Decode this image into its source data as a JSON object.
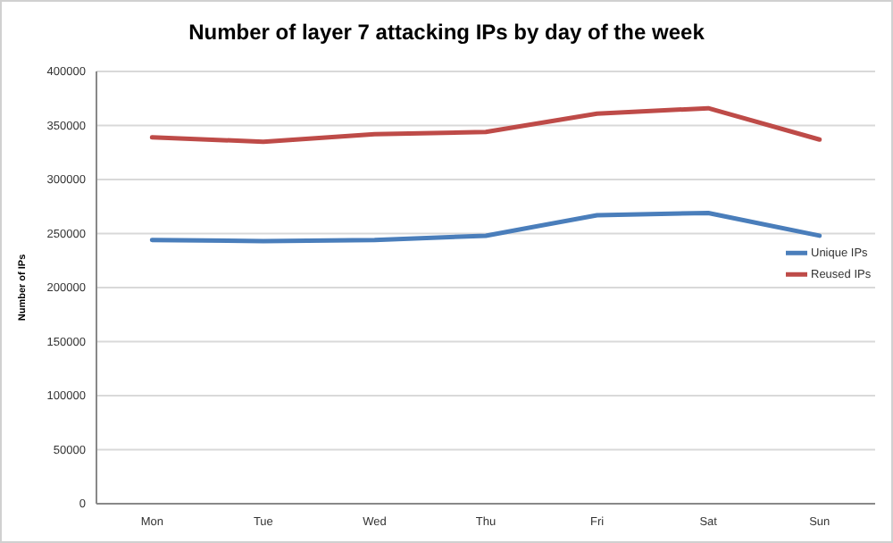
{
  "chart_data": {
    "type": "line",
    "title": "Number of layer 7 attacking IPs by day of the week",
    "ylabel": "Number of IPs",
    "categories": [
      "Mon",
      "Tue",
      "Wed",
      "Thu",
      "Fri",
      "Sat",
      "Sun"
    ],
    "series": [
      {
        "name": "Unique IPs",
        "color": "#4a7ebb",
        "values": [
          244000,
          243000,
          244000,
          248000,
          267000,
          269000,
          248000
        ]
      },
      {
        "name": "Reused IPs",
        "color": "#be4b48",
        "values": [
          339000,
          335000,
          342000,
          344000,
          361000,
          366000,
          337000
        ]
      }
    ],
    "ylim": [
      0,
      400000
    ],
    "yticks": [
      0,
      50000,
      100000,
      150000,
      200000,
      250000,
      300000,
      350000,
      400000
    ],
    "grid": "y",
    "legend": "right",
    "marker": "none",
    "line_style": "solid"
  }
}
